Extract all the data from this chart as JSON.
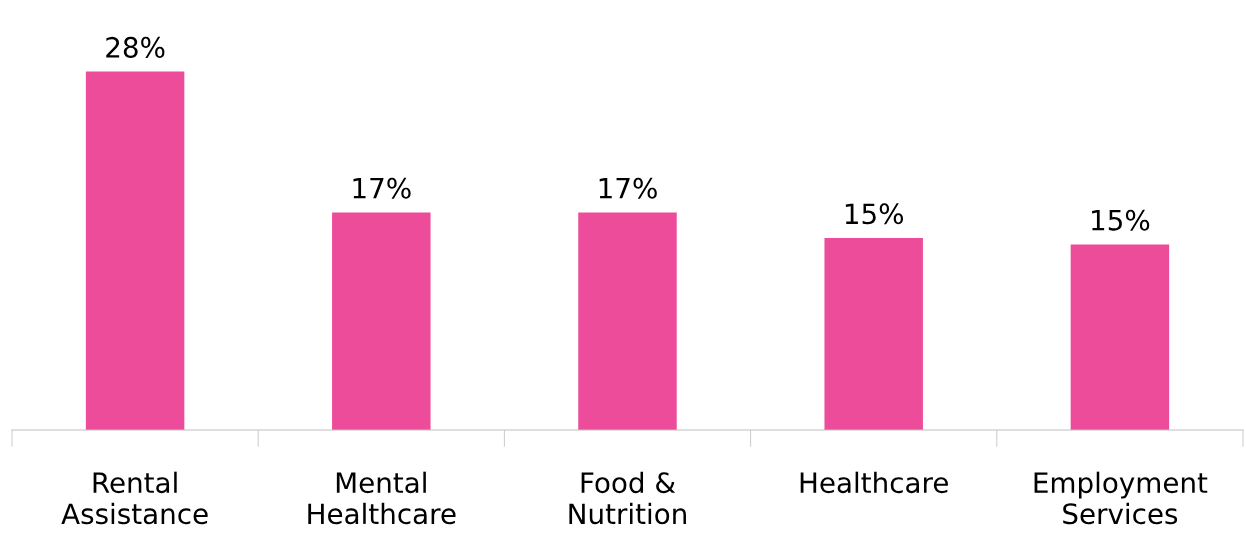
{
  "chart_data": {
    "type": "bar",
    "categories": [
      "Rental\nAssistance",
      "Mental\nHealthcare",
      "Food &\nNutrition",
      "Healthcare",
      "Employment\nServices"
    ],
    "values": [
      28,
      17,
      17,
      15,
      14.5
    ],
    "value_labels": [
      "28%",
      "17%",
      "17%",
      "15%",
      "15%"
    ],
    "color": "#ed4c9b",
    "grid": false,
    "legend": false,
    "tick_labels": "x"
  }
}
